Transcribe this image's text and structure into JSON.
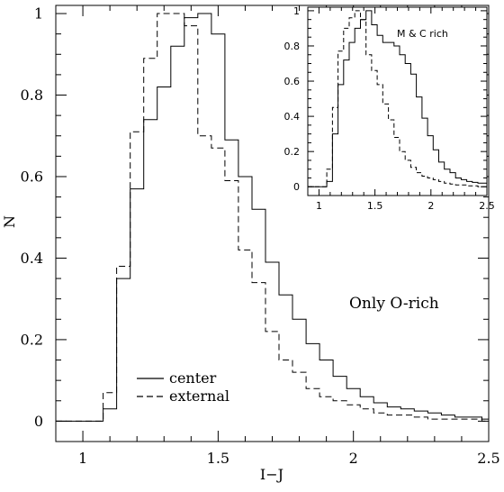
{
  "chart_data": [
    {
      "type": "line",
      "panel": "main",
      "xlabel": "I−J",
      "ylabel": "N",
      "xlim": [
        0.9,
        2.5
      ],
      "ylim": [
        -0.05,
        1.02
      ],
      "x_ticks": [
        "1",
        "1.5",
        "2",
        "2.5"
      ],
      "y_ticks": [
        "0",
        "0.2",
        "0.4",
        "0.6",
        "0.8",
        "1"
      ],
      "annotation": "Only O-rich",
      "legend_position": "bottom-left",
      "series": [
        {
          "name": "center",
          "style": "solid",
          "edges": [
            0.9,
            1.075,
            1.125,
            1.175,
            1.225,
            1.275,
            1.325,
            1.375,
            1.425,
            1.475,
            1.525,
            1.575,
            1.625,
            1.675,
            1.725,
            1.775,
            1.825,
            1.875,
            1.925,
            1.975,
            2.025,
            2.075,
            2.125,
            2.175,
            2.225,
            2.275,
            2.325,
            2.375,
            2.425,
            2.475,
            2.5
          ],
          "values": [
            0,
            0.03,
            0.35,
            0.57,
            0.74,
            0.82,
            0.92,
            0.99,
            1.0,
            0.95,
            0.69,
            0.6,
            0.52,
            0.39,
            0.31,
            0.25,
            0.19,
            0.15,
            0.11,
            0.08,
            0.06,
            0.045,
            0.035,
            0.03,
            0.025,
            0.02,
            0.015,
            0.01,
            0.01,
            0.005
          ]
        },
        {
          "name": "external",
          "style": "dashed",
          "edges": [
            0.9,
            1.075,
            1.125,
            1.175,
            1.225,
            1.275,
            1.325,
            1.375,
            1.425,
            1.475,
            1.525,
            1.575,
            1.625,
            1.675,
            1.725,
            1.775,
            1.825,
            1.875,
            1.925,
            1.975,
            2.025,
            2.075,
            2.125,
            2.175,
            2.225,
            2.275,
            2.325,
            2.375,
            2.425,
            2.475,
            2.5
          ],
          "values": [
            0,
            0.07,
            0.38,
            0.71,
            0.89,
            1.0,
            1.0,
            0.97,
            0.7,
            0.67,
            0.59,
            0.42,
            0.34,
            0.22,
            0.15,
            0.12,
            0.08,
            0.06,
            0.05,
            0.04,
            0.03,
            0.02,
            0.015,
            0.015,
            0.01,
            0.005,
            0.005,
            0.005,
            0.005,
            0.0
          ]
        }
      ]
    },
    {
      "type": "line",
      "panel": "inset",
      "xlim": [
        0.9,
        2.5
      ],
      "ylim": [
        -0.05,
        1.02
      ],
      "x_ticks": [
        "1",
        "1.5",
        "2",
        "2.5"
      ],
      "y_ticks": [
        "0",
        "0.2",
        "0.4",
        "0.6",
        "0.8",
        "1"
      ],
      "annotation": "M & C rich",
      "series": [
        {
          "style": "solid",
          "edges": [
            0.9,
            1.07,
            1.12,
            1.17,
            1.22,
            1.27,
            1.32,
            1.37,
            1.42,
            1.47,
            1.52,
            1.57,
            1.62,
            1.67,
            1.72,
            1.77,
            1.82,
            1.87,
            1.92,
            1.97,
            2.02,
            2.07,
            2.12,
            2.17,
            2.22,
            2.27,
            2.32,
            2.37,
            2.42,
            2.47,
            2.5
          ],
          "values": [
            0,
            0.03,
            0.3,
            0.58,
            0.72,
            0.82,
            0.9,
            0.95,
            1.0,
            0.92,
            0.86,
            0.82,
            0.82,
            0.8,
            0.75,
            0.7,
            0.64,
            0.51,
            0.39,
            0.29,
            0.21,
            0.14,
            0.1,
            0.08,
            0.05,
            0.04,
            0.03,
            0.025,
            0.02,
            0.02
          ]
        },
        {
          "style": "dashed",
          "edges": [
            0.9,
            1.07,
            1.12,
            1.17,
            1.22,
            1.27,
            1.32,
            1.37,
            1.42,
            1.47,
            1.52,
            1.57,
            1.62,
            1.67,
            1.72,
            1.77,
            1.82,
            1.87,
            1.92,
            1.97,
            2.02,
            2.07,
            2.12,
            2.17,
            2.22,
            2.27,
            2.32,
            2.37,
            2.42,
            2.47,
            2.5
          ],
          "values": [
            0,
            0.1,
            0.45,
            0.77,
            0.9,
            0.96,
            1.0,
            0.95,
            0.75,
            0.66,
            0.58,
            0.47,
            0.38,
            0.28,
            0.2,
            0.15,
            0.11,
            0.08,
            0.06,
            0.05,
            0.04,
            0.03,
            0.02,
            0.015,
            0.01,
            0.01,
            0.005,
            0.005,
            0.0,
            0.0
          ]
        }
      ]
    }
  ]
}
